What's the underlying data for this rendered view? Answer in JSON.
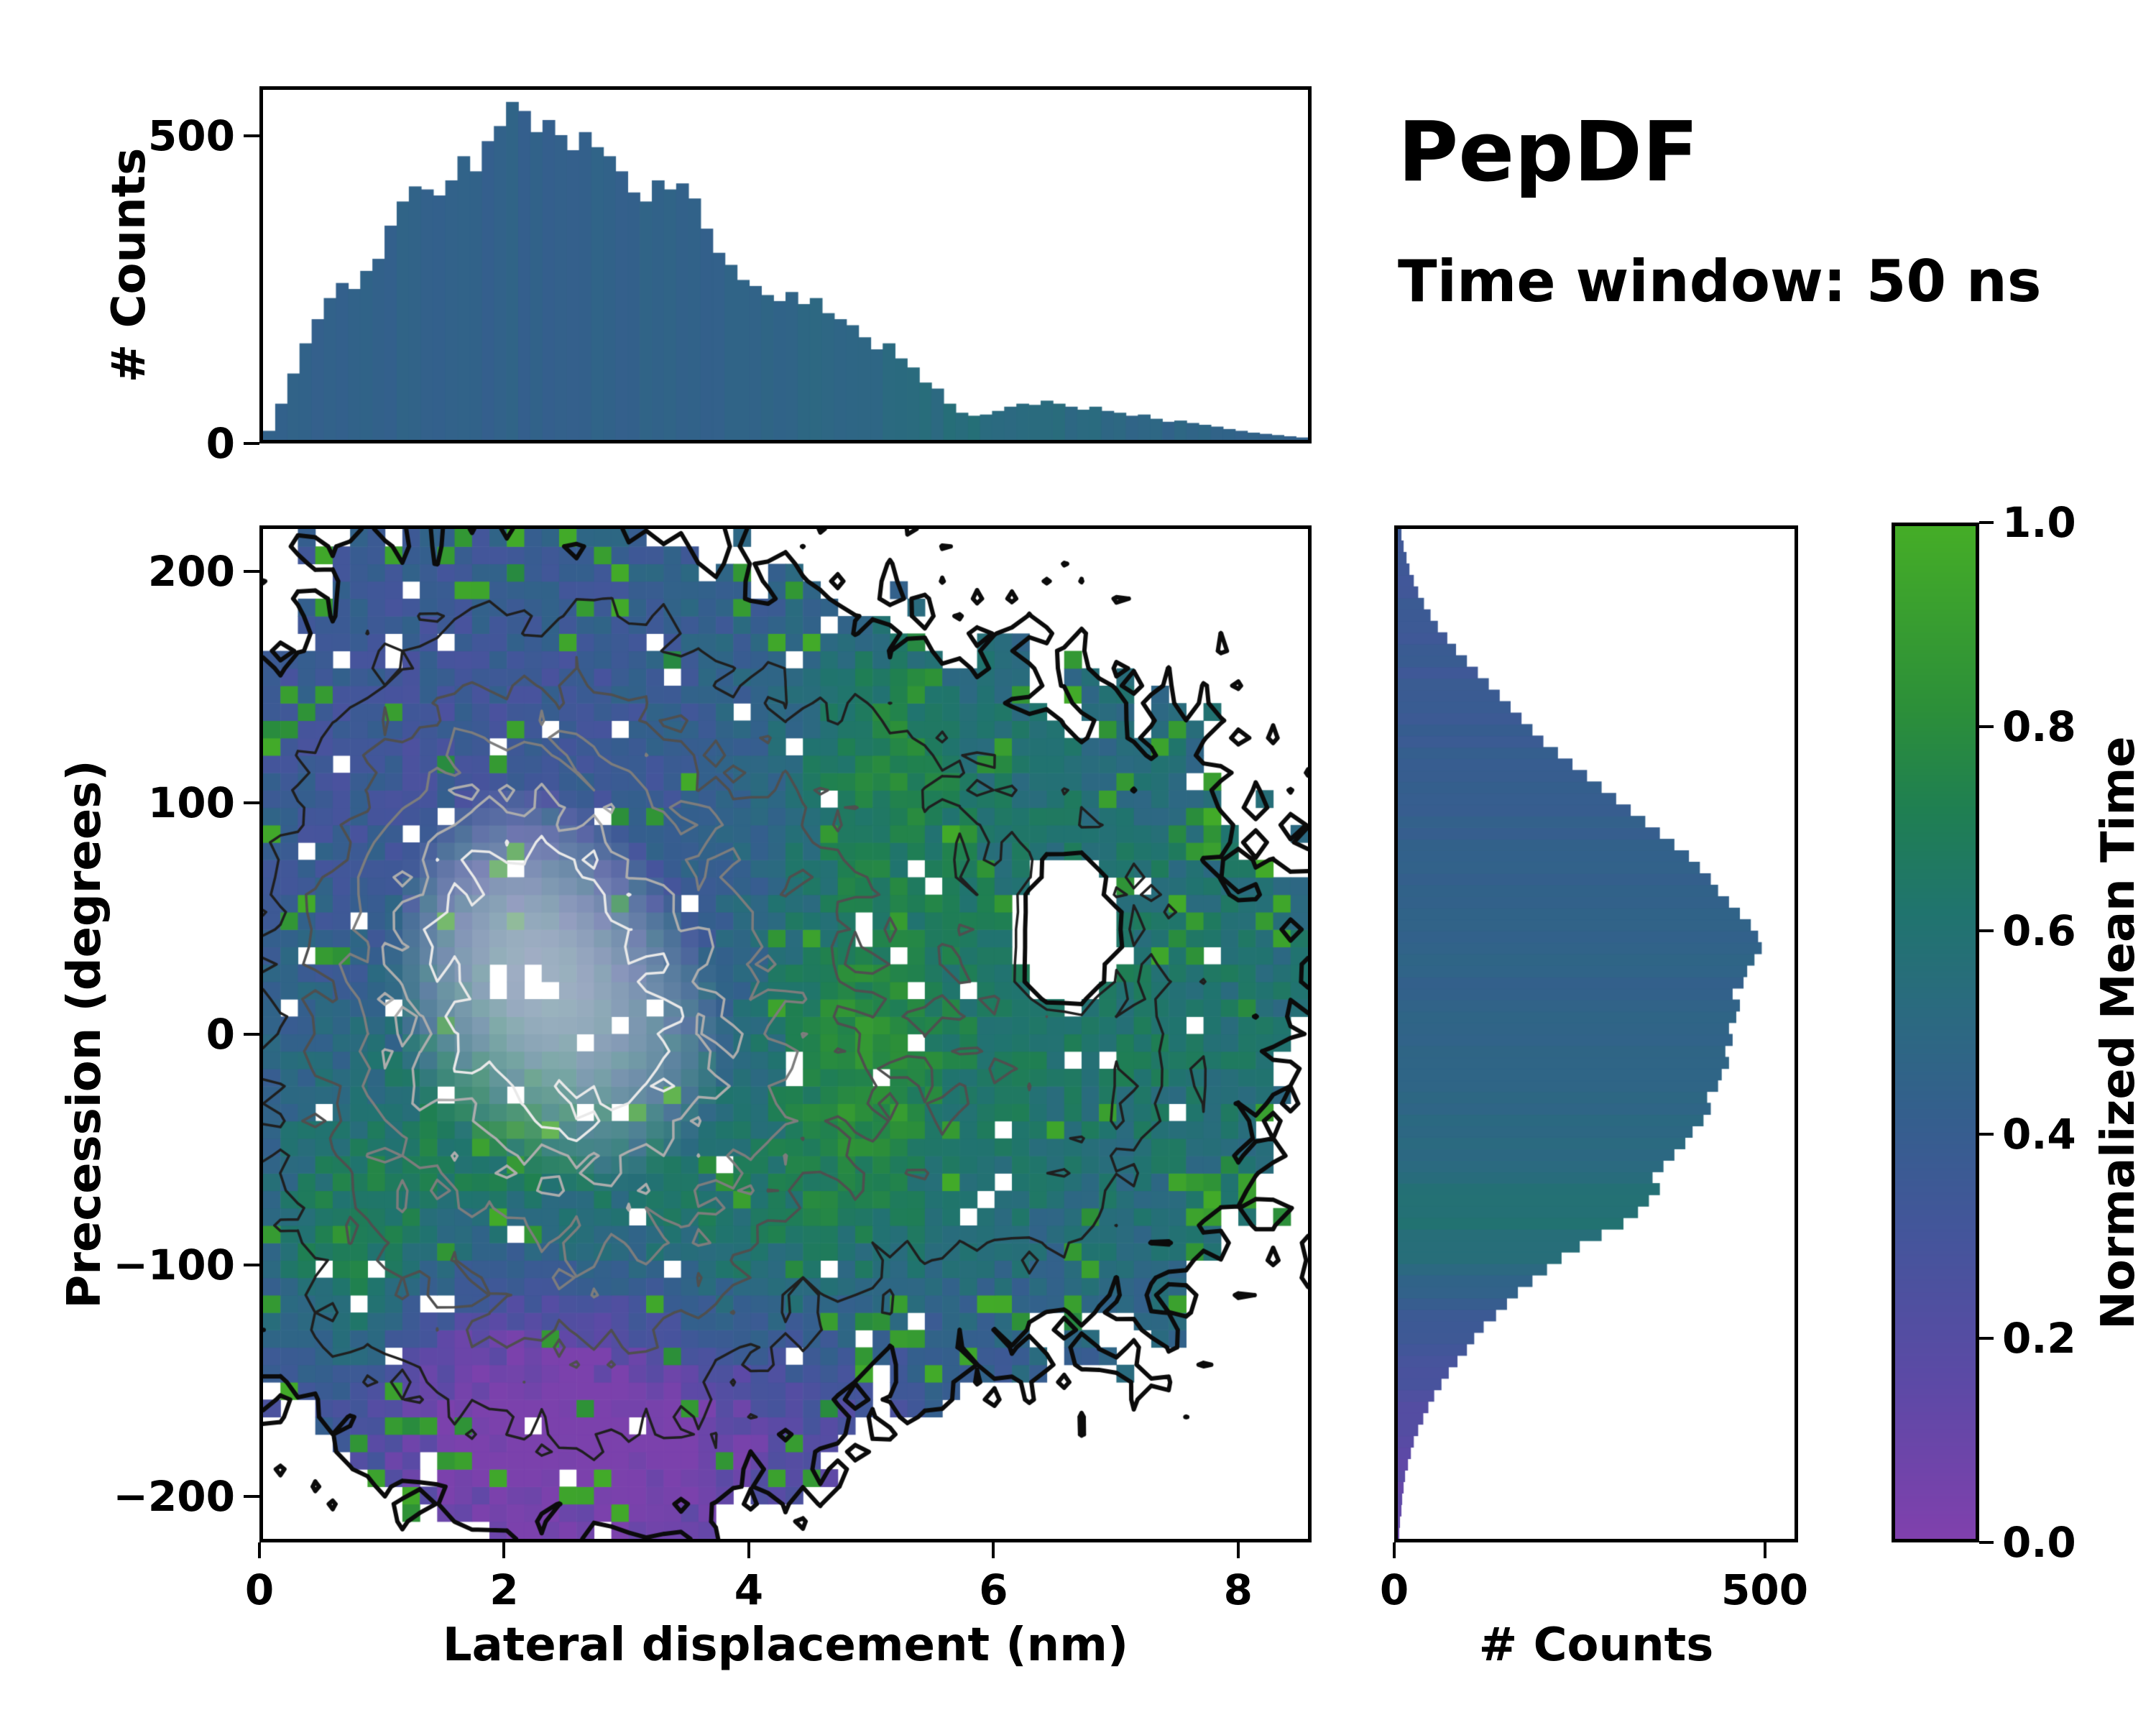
{
  "chart_data": {
    "type": "heatmap",
    "title": "PepDF",
    "annotation": "Time window: 50 ns",
    "main": {
      "xlabel": "Lateral displacement (nm)",
      "ylabel": "Precession (degrees)",
      "xlim": [
        0,
        8.6
      ],
      "ylim": [
        -220,
        220
      ],
      "xticks": [
        0,
        2,
        4,
        6,
        8
      ],
      "yticks": [
        -200,
        -100,
        0,
        100,
        200
      ]
    },
    "top_histogram": {
      "type": "bar",
      "ylabel": "# Counts",
      "ylim": [
        0,
        580
      ],
      "yticks": [
        0,
        500
      ],
      "bin_start": 0,
      "bin_width": 0.1,
      "values": [
        15,
        60,
        110,
        160,
        200,
        235,
        260,
        250,
        280,
        300,
        355,
        395,
        420,
        415,
        405,
        430,
        470,
        445,
        495,
        520,
        560,
        545,
        510,
        530,
        505,
        480,
        510,
        485,
        470,
        445,
        410,
        395,
        430,
        415,
        425,
        400,
        350,
        310,
        290,
        265,
        255,
        240,
        230,
        245,
        225,
        235,
        210,
        200,
        190,
        170,
        150,
        160,
        135,
        120,
        95,
        85,
        60,
        45,
        40,
        42,
        48,
        55,
        60,
        58,
        65,
        60,
        55,
        50,
        55,
        48,
        45,
        40,
        42,
        35,
        30,
        32,
        28,
        25,
        22,
        18,
        15,
        12,
        10,
        8,
        6,
        4
      ],
      "tint_stops": [
        [
          0,
          0.44
        ],
        [
          3.5,
          0.45
        ],
        [
          5.0,
          0.5
        ],
        [
          5.8,
          0.55
        ],
        [
          6.6,
          0.52
        ],
        [
          7.4,
          0.47
        ],
        [
          8.6,
          0.44
        ]
      ]
    },
    "right_histogram": {
      "type": "bar",
      "xlabel": "# Counts",
      "xlim": [
        0,
        545
      ],
      "xticks": [
        0,
        500
      ],
      "bin_start": -220,
      "bin_width": 5,
      "values": [
        2,
        3,
        5,
        6,
        8,
        10,
        14,
        18,
        22,
        28,
        35,
        42,
        50,
        60,
        70,
        82,
        95,
        105,
        118,
        135,
        150,
        165,
        185,
        205,
        225,
        250,
        280,
        310,
        330,
        345,
        360,
        350,
        365,
        380,
        395,
        405,
        420,
        430,
        425,
        440,
        445,
        455,
        450,
        460,
        455,
        465,
        470,
        460,
        475,
        480,
        490,
        500,
        495,
        485,
        470,
        455,
        440,
        430,
        415,
        400,
        380,
        360,
        340,
        320,
        300,
        280,
        260,
        240,
        220,
        200,
        185,
        170,
        155,
        140,
        125,
        110,
        95,
        80,
        68,
        55,
        45,
        36,
        28,
        22,
        16,
        12,
        8,
        5
      ],
      "tint_stops": [
        [
          -220,
          0.1
        ],
        [
          -170,
          0.2
        ],
        [
          -120,
          0.38
        ],
        [
          -95,
          0.55
        ],
        [
          -75,
          0.6
        ],
        [
          -55,
          0.52
        ],
        [
          -20,
          0.47
        ],
        [
          40,
          0.45
        ],
        [
          100,
          0.42
        ],
        [
          160,
          0.36
        ],
        [
          220,
          0.33
        ]
      ]
    },
    "colorbar": {
      "label": "Normalized Mean Time",
      "min": 0,
      "max": 1,
      "ticks": [
        {
          "v": 0.0,
          "label": "0.0"
        },
        {
          "v": 0.2,
          "label": "0.2"
        },
        {
          "v": 0.4,
          "label": "0.4"
        },
        {
          "v": 0.6,
          "label": "0.6"
        },
        {
          "v": 0.8,
          "label": "0.8"
        },
        {
          "v": 1.0,
          "label": "1.0"
        }
      ]
    },
    "colormap": {
      "stops": [
        [
          0.0,
          "#8040ad"
        ],
        [
          0.15,
          "#5d49a6"
        ],
        [
          0.3,
          "#44559b"
        ],
        [
          0.42,
          "#345f8d"
        ],
        [
          0.52,
          "#2b6a80"
        ],
        [
          0.62,
          "#20746e"
        ],
        [
          0.72,
          "#1f7f52"
        ],
        [
          0.82,
          "#2c8f39"
        ],
        [
          1.0,
          "#45ad27"
        ]
      ]
    },
    "heatmap": {
      "nx": 60,
      "ny": 58,
      "seed": 1337,
      "threshold": 0.17,
      "noise": 0.13,
      "time_base": 0.45,
      "time_noise": 0.09,
      "green_base": 0.035,
      "green_edge": 0.09,
      "white_speckle": 0.03,
      "gray_blend_start": 1.15,
      "hole": {
        "x": 6.62,
        "y": 45,
        "rx": 0.42,
        "ry": 34
      },
      "density_blobs": [
        {
          "x": 2.3,
          "y": 15,
          "sx": 1.5,
          "sy": 85,
          "a": 1.0
        },
        {
          "x": 1.7,
          "y": 60,
          "sx": 1.0,
          "sy": 55,
          "a": 0.45
        },
        {
          "x": 3.2,
          "y": -30,
          "sx": 1.2,
          "sy": 70,
          "a": 0.5
        },
        {
          "x": 6.4,
          "y": 30,
          "sx": 1.5,
          "sy": 80,
          "a": 0.5
        },
        {
          "x": 2.7,
          "y": -150,
          "sx": 1.2,
          "sy": 50,
          "a": 0.4
        },
        {
          "x": 2.1,
          "y": 150,
          "sx": 1.3,
          "sy": 55,
          "a": 0.36
        },
        {
          "x": 0.8,
          "y": -80,
          "sx": 0.7,
          "sy": 60,
          "a": 0.32
        },
        {
          "x": 6.0,
          "y": -70,
          "sx": 1.2,
          "sy": 55,
          "a": 0.3
        },
        {
          "x": 4.6,
          "y": 120,
          "sx": 0.9,
          "sy": 45,
          "a": 0.25
        }
      ],
      "time_blobs": [
        {
          "x": 6.6,
          "y": 20,
          "sx": 1.9,
          "sy": 95,
          "a": 0.2
        },
        {
          "x": 2.6,
          "y": -165,
          "sx": 1.7,
          "sy": 60,
          "a": -0.55
        },
        {
          "x": 1.5,
          "y": 130,
          "sx": 1.6,
          "sy": 70,
          "a": -0.12
        },
        {
          "x": 1.9,
          "y": -55,
          "sx": 0.8,
          "sy": 45,
          "a": 0.3
        },
        {
          "x": 3.7,
          "y": -100,
          "sx": 0.9,
          "sy": 40,
          "a": 0.32
        },
        {
          "x": 0.7,
          "y": -110,
          "sx": 0.5,
          "sy": 45,
          "a": 0.35
        },
        {
          "x": 4.9,
          "y": -15,
          "sx": 0.5,
          "sy": 55,
          "a": 0.25
        },
        {
          "x": 5.1,
          "y": 125,
          "sx": 0.5,
          "sy": 35,
          "a": 0.22
        },
        {
          "x": 3.3,
          "y": 40,
          "sx": 0.8,
          "sy": 60,
          "a": -0.08
        }
      ],
      "contour_levels": [
        {
          "level": 0.17,
          "color": "#0b0b0b",
          "width": 6
        },
        {
          "level": 0.45,
          "color": "#1f1f1f",
          "width": 3.5
        },
        {
          "level": 0.72,
          "color": "#4f4f4f",
          "width": 3.5
        },
        {
          "level": 0.95,
          "color": "#7d7d7d",
          "width": 3.5
        },
        {
          "level": 1.18,
          "color": "#adadad",
          "width": 3.5
        },
        {
          "level": 1.38,
          "color": "#e9e9e9",
          "width": 3.5
        }
      ]
    }
  }
}
